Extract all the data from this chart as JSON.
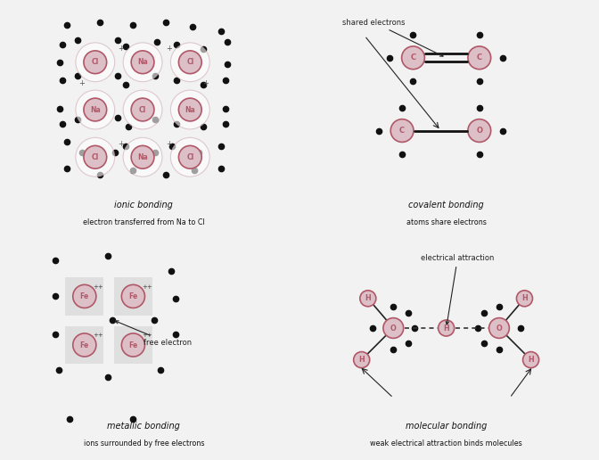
{
  "bg_color": "#f2f2f2",
  "ion_color": "#b05868",
  "ion_bg_color": "#ddbfc8",
  "electron_color": "#111111",
  "text_color": "#111111",
  "annotation_color": "#222222",
  "labels": {
    "ionic_title": "ionic bonding",
    "ionic_sub": "electron transferred from Na to Cl",
    "covalent_title": "covalent bonding",
    "covalent_sub": "atoms share electrons",
    "metallic_title": "metallic bonding",
    "metallic_sub": "ions surrounded by free electrons",
    "molecular_title": "molecular bonding",
    "molecular_sub": "weak electrical attraction binds molecules"
  }
}
